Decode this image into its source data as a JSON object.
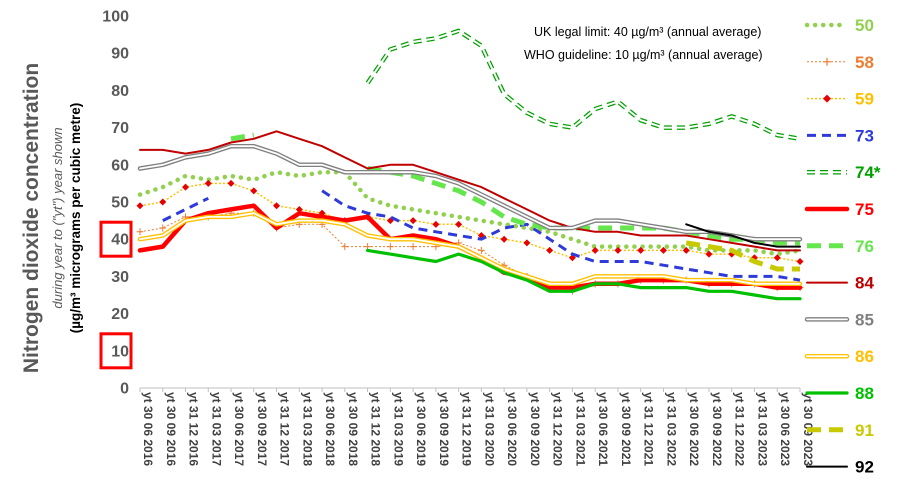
{
  "chart_data": {
    "type": "line",
    "ylabel_main": "Nitrogen dioxide concentration",
    "ylabel_sub": "during year to (\"yt\") year shown",
    "ylabel_unit": "(µg/m³ micrograms per cubic metre)",
    "ylim": [
      0,
      100
    ],
    "yticks": [
      0,
      10,
      20,
      30,
      40,
      50,
      60,
      70,
      80,
      90,
      100
    ],
    "highlighted_ticks": [
      10,
      40
    ],
    "annotations": [
      "UK legal limit:  40 µg/m³ (annual average)",
      "WHO guideline:  10 µg/m³ (annual average)"
    ],
    "x_labels": [
      "yt 30 06 2016",
      "yt 30 09 2016",
      "yt 31 12 2016",
      "yt 31 03 2017",
      "yt 30 06 2017",
      "yt 30 09 2017",
      "yt 31 12 2017",
      "yt 31 03 2018",
      "yt 30 06 2018",
      "yt 30 09 2018",
      "yt 31 12 2018",
      "yt 31 03 2019",
      "yt 30 06 2019",
      "yt 30 09 2019",
      "yt 31 12 2019",
      "yt 31 03 2020",
      "yt 30 06 2020",
      "yt 30 09 2020",
      "yt 31 12 2020",
      "yt 31 03 2021",
      "yt 30 06 2021",
      "yt 30 09 2021",
      "yt 31 12 2021",
      "yt 31 03 2022",
      "yt 30 06 2022",
      "yt 30 09 2022",
      "yt 31 12 2022",
      "yt 31 03 2023",
      "yt 30 06 2023",
      "yt 30 09 2023"
    ],
    "series": [
      {
        "name": "50",
        "color": "#92D050",
        "style": "dotted",
        "values": [
          52,
          54,
          57,
          56,
          57,
          56,
          58,
          57,
          58,
          58,
          51,
          49,
          48,
          47,
          46,
          45,
          44,
          43,
          42,
          40,
          38,
          38,
          38,
          38,
          38,
          37,
          37,
          37,
          36,
          37
        ]
      },
      {
        "name": "58",
        "color": "#ED7D31",
        "style": "thin-plus",
        "values": [
          42,
          43,
          46,
          46,
          47,
          47,
          43,
          44,
          44,
          38,
          38,
          38,
          38,
          38,
          39,
          37,
          33,
          30,
          27,
          26,
          28,
          28,
          29,
          29,
          29,
          28,
          28,
          28,
          27,
          27
        ]
      },
      {
        "name": "59",
        "color": "#FFC000",
        "marker_color": "#E60000",
        "style": "dotted-diamond",
        "values": [
          49,
          50,
          54,
          55,
          55,
          53,
          49,
          48,
          47,
          45,
          46,
          45,
          45,
          44,
          44,
          41,
          40,
          39,
          37,
          35,
          37,
          37,
          37,
          37,
          37,
          36,
          36,
          35,
          35,
          34
        ]
      },
      {
        "name": "73",
        "color": "#2E3BD9",
        "style": "dash",
        "values": [
          null,
          45,
          48,
          51,
          null,
          null,
          null,
          null,
          53,
          49,
          47,
          46,
          43,
          42,
          41,
          40,
          43,
          44,
          40,
          36,
          34,
          34,
          34,
          33,
          32,
          31,
          30,
          30,
          30,
          29
        ]
      },
      {
        "name": "74*",
        "color": "#00A000",
        "style": "dash-open",
        "values": [
          null,
          null,
          null,
          null,
          null,
          null,
          null,
          null,
          null,
          null,
          82,
          91,
          93,
          94,
          96,
          92,
          79,
          74,
          71,
          70,
          75,
          77,
          72,
          70,
          70,
          71,
          73,
          71,
          68,
          67
        ]
      },
      {
        "name": "75",
        "color": "#FF0000",
        "style": "thick",
        "values": [
          37,
          38,
          45,
          47,
          48,
          49,
          43,
          47,
          46,
          45,
          46,
          40,
          41,
          40,
          38,
          35,
          31,
          30,
          27,
          27,
          28,
          28,
          29,
          29,
          29,
          28,
          28,
          28,
          27,
          27
        ]
      },
      {
        "name": "76",
        "color": "#66E64D",
        "style": "thick-dash",
        "values": [
          null,
          null,
          null,
          null,
          67,
          68,
          null,
          null,
          null,
          null,
          59,
          58,
          57,
          55,
          53,
          50,
          46,
          44,
          43,
          43,
          43,
          43,
          43,
          43,
          42,
          41,
          40,
          40,
          39,
          39
        ]
      },
      {
        "name": "84",
        "color": "#C00000",
        "style": "solid",
        "values": [
          64,
          64,
          63,
          64,
          66,
          67,
          69,
          67,
          65,
          62,
          59,
          60,
          60,
          58,
          56,
          54,
          51,
          48,
          45,
          43,
          42,
          42,
          41,
          41,
          41,
          40,
          39,
          38,
          37,
          37
        ]
      },
      {
        "name": "85",
        "color": "#808080",
        "style": "double",
        "values": [
          59,
          60,
          62,
          63,
          65,
          65,
          63,
          60,
          60,
          58,
          58,
          58,
          58,
          57,
          55,
          52,
          49,
          46,
          43,
          43,
          45,
          45,
          44,
          43,
          42,
          42,
          41,
          40,
          40,
          40
        ]
      },
      {
        "name": "86",
        "color": "#FFC000",
        "style": "double",
        "values": [
          40,
          41,
          45,
          46,
          46,
          47,
          44,
          45,
          45,
          44,
          41,
          40,
          40,
          39,
          38,
          35,
          32,
          30,
          28,
          28,
          30,
          30,
          30,
          30,
          29,
          29,
          29,
          28,
          28,
          28
        ]
      },
      {
        "name": "88",
        "color": "#00C000",
        "style": "solid-thick",
        "values": [
          null,
          null,
          null,
          null,
          null,
          null,
          null,
          null,
          null,
          null,
          37,
          36,
          35,
          34,
          36,
          34,
          31,
          29,
          26,
          26,
          28,
          28,
          27,
          27,
          27,
          26,
          26,
          25,
          24,
          24
        ]
      },
      {
        "name": "91",
        "color": "#C9C900",
        "style": "thick-dash",
        "values": [
          null,
          null,
          null,
          null,
          null,
          null,
          null,
          null,
          null,
          null,
          null,
          null,
          null,
          null,
          null,
          null,
          null,
          null,
          null,
          null,
          null,
          null,
          null,
          null,
          39,
          38,
          37,
          34,
          32,
          32
        ]
      },
      {
        "name": "92",
        "color": "#000000",
        "style": "solid",
        "values": [
          null,
          null,
          null,
          null,
          null,
          null,
          null,
          null,
          null,
          null,
          null,
          null,
          null,
          null,
          null,
          null,
          null,
          null,
          null,
          null,
          null,
          null,
          null,
          null,
          44,
          42,
          41,
          39,
          38,
          38
        ]
      }
    ]
  }
}
